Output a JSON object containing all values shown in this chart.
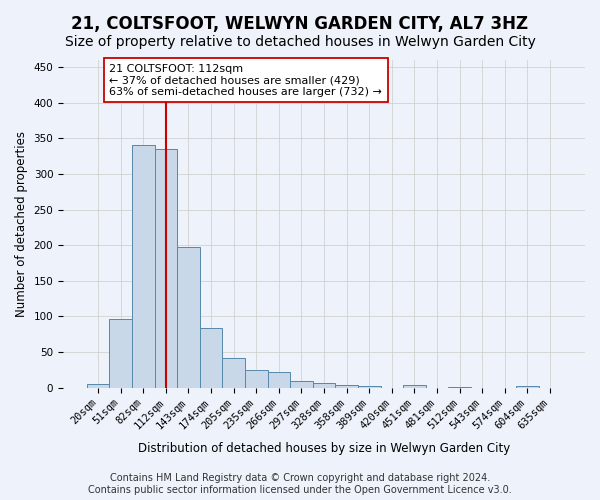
{
  "title": "21, COLTSFOOT, WELWYN GARDEN CITY, AL7 3HZ",
  "subtitle": "Size of property relative to detached houses in Welwyn Garden City",
  "xlabel": "Distribution of detached houses by size in Welwyn Garden City",
  "ylabel": "Number of detached properties",
  "footer_line1": "Contains HM Land Registry data © Crown copyright and database right 2024.",
  "footer_line2": "Contains public sector information licensed under the Open Government Licence v3.0.",
  "annotation_line1": "21 COLTSFOOT: 112sqm",
  "annotation_line2": "← 37% of detached houses are smaller (429)",
  "annotation_line3": "63% of semi-detached houses are larger (732) →",
  "bin_labels": [
    "20sqm",
    "51sqm",
    "82sqm",
    "112sqm",
    "143sqm",
    "174sqm",
    "205sqm",
    "235sqm",
    "266sqm",
    "297sqm",
    "328sqm",
    "358sqm",
    "389sqm",
    "420sqm",
    "451sqm",
    "481sqm",
    "512sqm",
    "543sqm",
    "574sqm",
    "604sqm",
    "635sqm"
  ],
  "bar_values": [
    5,
    97,
    340,
    335,
    197,
    83,
    42,
    25,
    22,
    9,
    6,
    4,
    2,
    0,
    4,
    0,
    1,
    0,
    0,
    2,
    0
  ],
  "bar_color": "#c8d8e8",
  "bar_edge_color": "#5588aa",
  "red_line_x": 3,
  "red_line_color": "#cc0000",
  "ylim": [
    0,
    460
  ],
  "yticks": [
    0,
    50,
    100,
    150,
    200,
    250,
    300,
    350,
    400,
    450
  ],
  "grid_color": "#cccccc",
  "background_color": "#eef2fa",
  "annotation_box_color": "#ffffff",
  "annotation_box_edge": "#cc0000",
  "title_fontsize": 12,
  "subtitle_fontsize": 10,
  "axis_label_fontsize": 8.5,
  "tick_fontsize": 7.5,
  "footer_fontsize": 7
}
